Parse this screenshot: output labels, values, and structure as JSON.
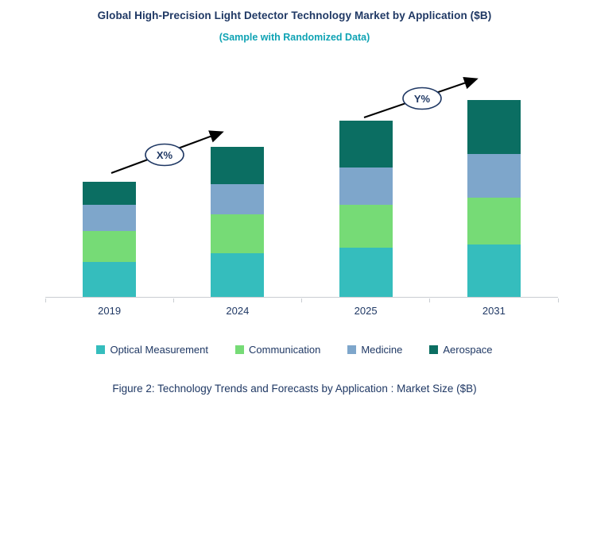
{
  "chart_data": {
    "type": "bar",
    "stacked": true,
    "title": "Global High-Precision Light Detector Technology Market by Application ($B)",
    "subtitle": "(Sample with Randomized Data)",
    "categories": [
      "2019",
      "2024",
      "2025",
      "2031"
    ],
    "series": [
      {
        "name": "Optical Measurement",
        "color": "#35BDBD",
        "values": [
          4.4,
          5.5,
          6.2,
          6.6
        ]
      },
      {
        "name": "Communication",
        "color": "#76DB76",
        "values": [
          3.9,
          4.9,
          5.4,
          5.9
        ]
      },
      {
        "name": "Medicine",
        "color": "#7EA6CB",
        "values": [
          3.3,
          3.8,
          4.7,
          5.5
        ]
      },
      {
        "name": "Aerospace",
        "color": "#0B6E62",
        "values": [
          2.9,
          4.7,
          5.9,
          6.8
        ]
      }
    ],
    "ylim": [
      0,
      28
    ],
    "y_axis_visible": false,
    "grid": false,
    "legend_position": "bottom",
    "growth_annotations": [
      "X%",
      "Y%"
    ]
  },
  "caption": {
    "text": "Figure 2: Technology Trends and Forecasts by Application : Market Size ($B)"
  },
  "colors": {
    "title": "#1F3864",
    "subtitle": "#0FA3B4",
    "axis": "#C9CDD2",
    "annotation_outline": "#1F3864",
    "arrow": "#000000"
  }
}
